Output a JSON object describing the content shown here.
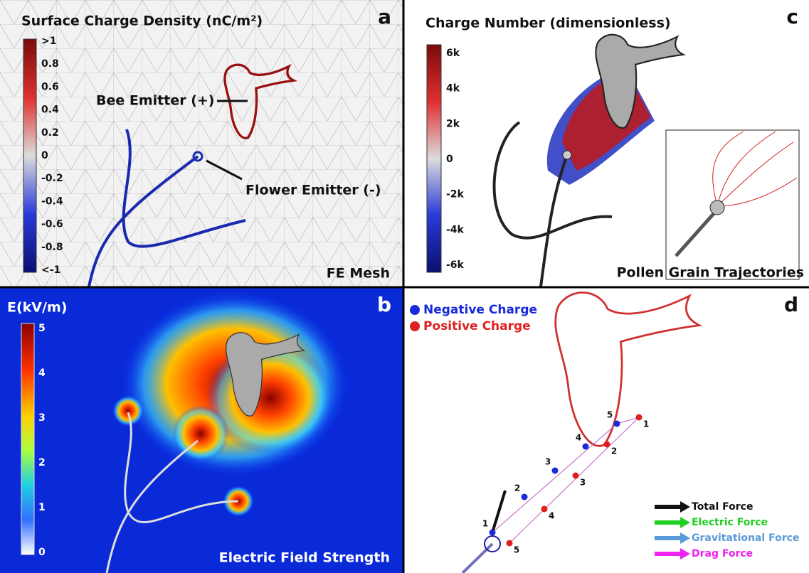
{
  "panels": [
    {
      "letter": "a",
      "title": "Surface Charge Density (nC/m²)",
      "colorbar_ticks": [
        ">1",
        "0.8",
        "0.6",
        "0.4",
        "0.2",
        "0",
        "-0.2",
        "-0.4",
        "-0.6",
        "-0.8",
        "<-1"
      ],
      "annotations": [
        "Bee Emitter (+)",
        "Flower Emitter (-)"
      ],
      "caption": "FE Mesh"
    },
    {
      "letter": "b",
      "title": "E(kV/m)",
      "colorbar_ticks": [
        "5",
        "4",
        "3",
        "2",
        "1",
        "0"
      ],
      "caption": "Electric Field Strength"
    },
    {
      "letter": "c",
      "title": "Charge Number (dimensionless)",
      "colorbar_ticks": [
        "6k",
        "4k",
        "2k",
        "0",
        "-2k",
        "-4k",
        "-6k"
      ],
      "caption": "Pollen Grain Trajectories"
    },
    {
      "letter": "d",
      "legend": [
        "Negative Charge",
        "Positive Charge"
      ],
      "force_legend": [
        "Total Force",
        "Electric Force",
        "Gravitational Force",
        "Drag Force"
      ],
      "negative_points": [
        "1",
        "2",
        "3",
        "4",
        "5"
      ],
      "positive_points": [
        "1",
        "2",
        "3",
        "4",
        "5"
      ]
    }
  ]
}
